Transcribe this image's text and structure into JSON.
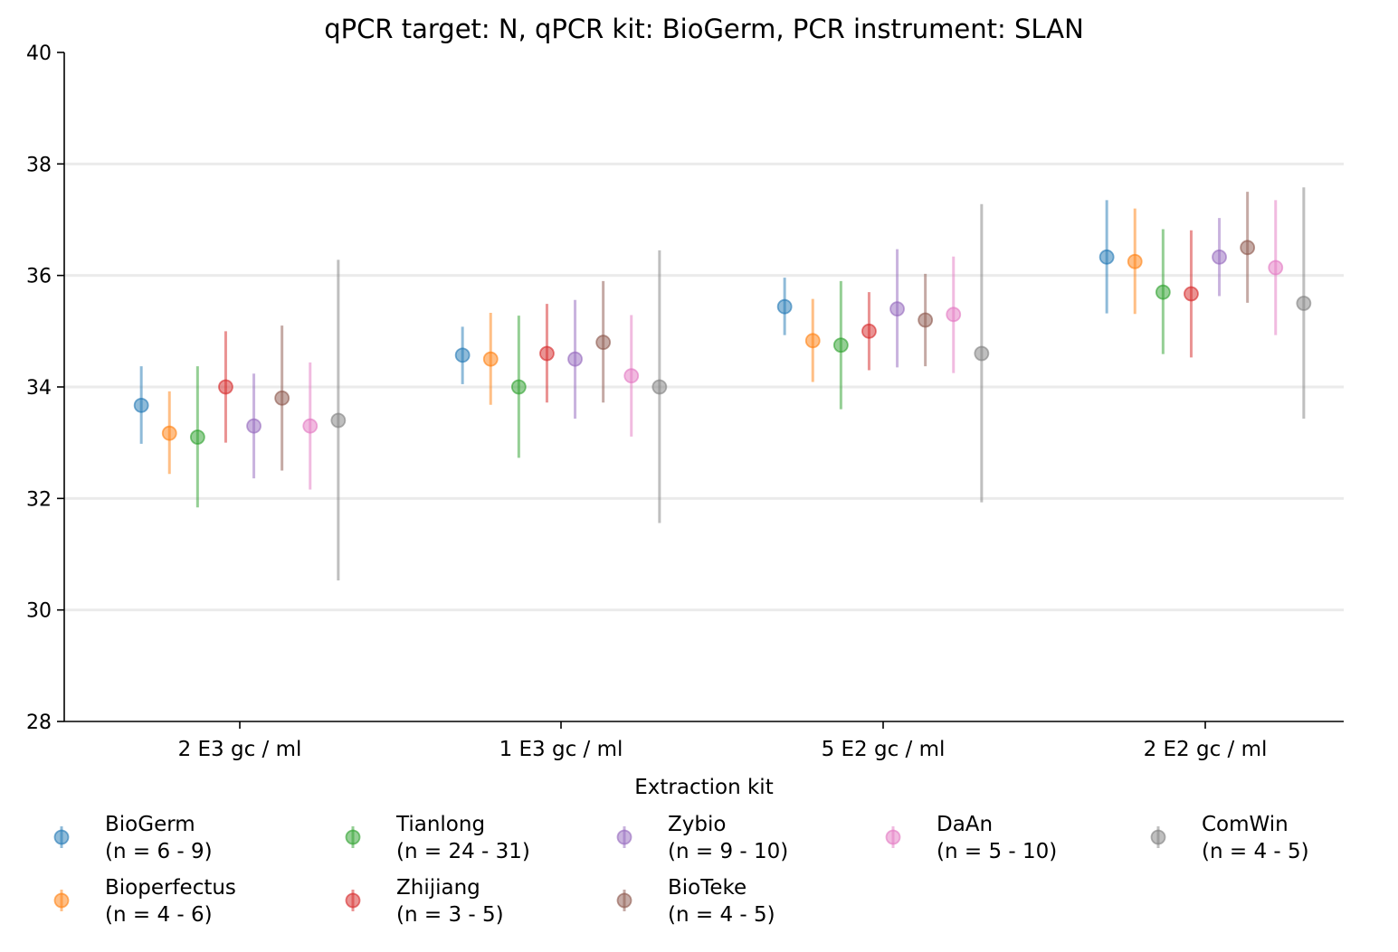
{
  "chart_data": {
    "type": "scatter",
    "title": "qPCR target: N, qPCR kit: BioGerm, PCR instrument: SLAN",
    "xlabel": "Extraction kit",
    "ylabel": "",
    "ylim": [
      28,
      40
    ],
    "yticks": [
      28,
      30,
      32,
      34,
      36,
      38,
      40
    ],
    "grid": "horizontal",
    "legend_title": "Extraction kit",
    "legend_position": "bottom",
    "categories": [
      "2 E3 gc / ml",
      "1 E3 gc / ml",
      "5 E2 gc / ml",
      "2 E2 gc / ml"
    ],
    "series": [
      {
        "name": "BioGerm",
        "n": "(n = 6 - 9)",
        "color": "#1f77b4",
        "values": [
          33.67,
          34.57,
          35.44,
          36.33
        ],
        "low": [
          32.98,
          34.05,
          34.93,
          35.32
        ],
        "high": [
          34.37,
          35.08,
          35.96,
          37.35
        ]
      },
      {
        "name": "Bioperfectus",
        "n": "(n = 4 - 6)",
        "color": "#ff7f0e",
        "values": [
          33.17,
          34.5,
          34.83,
          36.25
        ],
        "low": [
          32.44,
          33.68,
          34.09,
          35.31
        ],
        "high": [
          33.92,
          35.33,
          35.58,
          37.2
        ]
      },
      {
        "name": "Tianlong",
        "n": "(n = 24 - 31)",
        "color": "#2ca02c",
        "values": [
          33.1,
          34.0,
          34.75,
          35.7
        ],
        "low": [
          31.84,
          32.73,
          33.6,
          34.59
        ],
        "high": [
          34.37,
          35.28,
          35.9,
          36.83
        ]
      },
      {
        "name": "Zhijiang",
        "n": "(n = 3 - 5)",
        "color": "#d62728",
        "values": [
          34.0,
          34.6,
          35.0,
          35.67
        ],
        "low": [
          33.0,
          33.72,
          34.3,
          34.53
        ],
        "high": [
          35.0,
          35.49,
          35.7,
          36.81
        ]
      },
      {
        "name": "Zybio",
        "n": "(n = 9 - 10)",
        "color": "#9467bd",
        "values": [
          33.3,
          34.5,
          35.4,
          36.33
        ],
        "low": [
          32.36,
          33.43,
          34.35,
          35.63
        ],
        "high": [
          34.24,
          35.56,
          36.47,
          37.03
        ]
      },
      {
        "name": "BioTeke",
        "n": "(n = 4 - 5)",
        "color": "#8c564b",
        "values": [
          33.8,
          34.8,
          35.2,
          36.5
        ],
        "low": [
          32.5,
          33.72,
          34.37,
          35.51
        ],
        "high": [
          35.1,
          35.9,
          36.03,
          37.5
        ]
      },
      {
        "name": "DaAn",
        "n": "(n = 5 - 10)",
        "color": "#e377c2",
        "values": [
          33.3,
          34.2,
          35.3,
          36.14
        ],
        "low": [
          32.16,
          33.11,
          34.25,
          34.93
        ],
        "high": [
          34.44,
          35.29,
          36.34,
          37.35
        ]
      },
      {
        "name": "ComWin",
        "n": "(n = 4 - 5)",
        "color": "#7f7f7f",
        "values": [
          33.4,
          34.0,
          34.6,
          35.5
        ],
        "low": [
          30.53,
          31.56,
          31.93,
          33.43
        ],
        "high": [
          36.28,
          36.45,
          37.28,
          37.58
        ]
      }
    ]
  }
}
